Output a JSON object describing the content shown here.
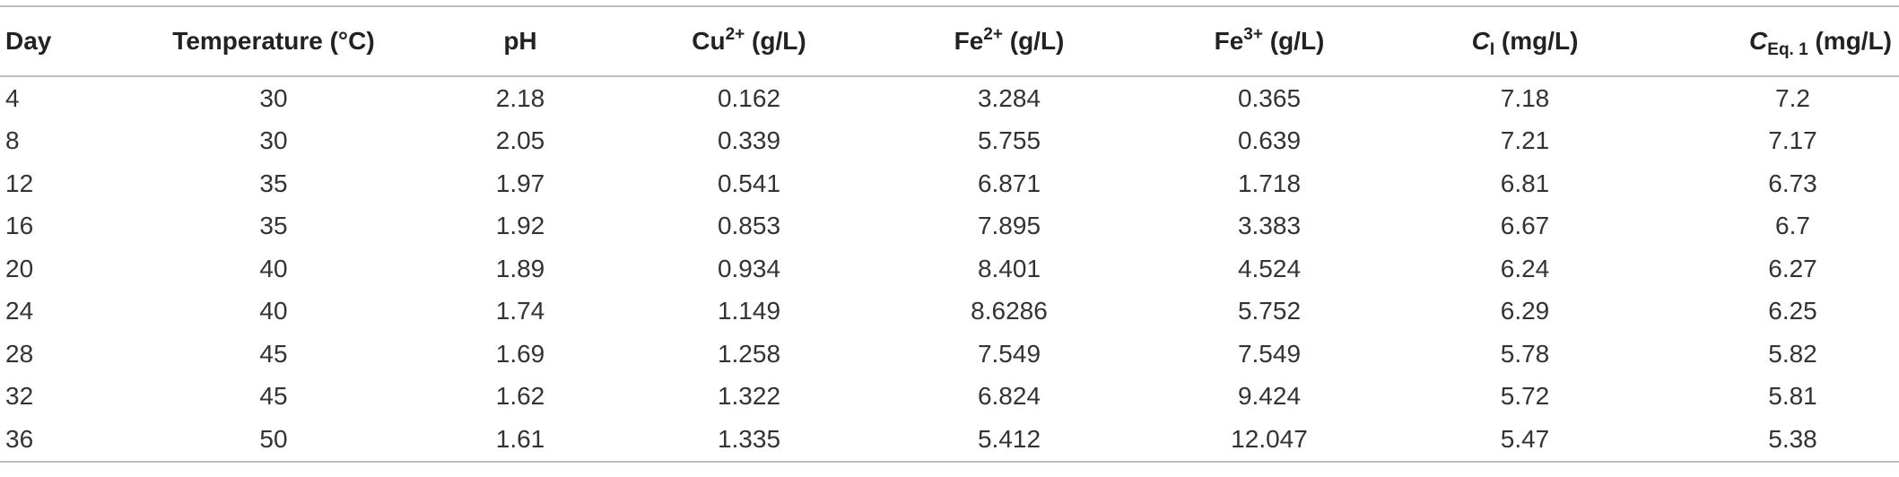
{
  "table": {
    "headers": {
      "day": "Day",
      "temperature": "Temperature (°C)",
      "ph": "pH",
      "cu_base": "Cu",
      "cu_sup": "2+",
      "cu_unit": " (g/L)",
      "fe2_base": "Fe",
      "fe2_sup": "2+",
      "fe2_unit": " (g/L)",
      "fe3_base": "Fe",
      "fe3_sup": "3+",
      "fe3_unit": " (g/L)",
      "ci_base": "C",
      "ci_sub": "I",
      "ci_unit": " (mg/L)",
      "ceq_base": "C",
      "ceq_sub": "Eq. 1",
      "ceq_unit": " (mg/L)"
    },
    "rows": [
      [
        "4",
        "30",
        "2.18",
        "0.162",
        "3.284",
        "0.365",
        "7.18",
        "7.2"
      ],
      [
        "8",
        "30",
        "2.05",
        "0.339",
        "5.755",
        "0.639",
        "7.21",
        "7.17"
      ],
      [
        "12",
        "35",
        "1.97",
        "0.541",
        "6.871",
        "1.718",
        "6.81",
        "6.73"
      ],
      [
        "16",
        "35",
        "1.92",
        "0.853",
        "7.895",
        "3.383",
        "6.67",
        "6.7"
      ],
      [
        "20",
        "40",
        "1.89",
        "0.934",
        "8.401",
        "4.524",
        "6.24",
        "6.27"
      ],
      [
        "24",
        "40",
        "1.74",
        "1.149",
        "8.6286",
        "5.752",
        "6.29",
        "6.25"
      ],
      [
        "28",
        "45",
        "1.69",
        "1.258",
        "7.549",
        "7.549",
        "5.78",
        "5.82"
      ],
      [
        "32",
        "45",
        "1.62",
        "1.322",
        "6.824",
        "9.424",
        "5.72",
        "5.81"
      ],
      [
        "36",
        "50",
        "1.61",
        "1.335",
        "5.412",
        "12.047",
        "5.47",
        "5.38"
      ]
    ]
  }
}
